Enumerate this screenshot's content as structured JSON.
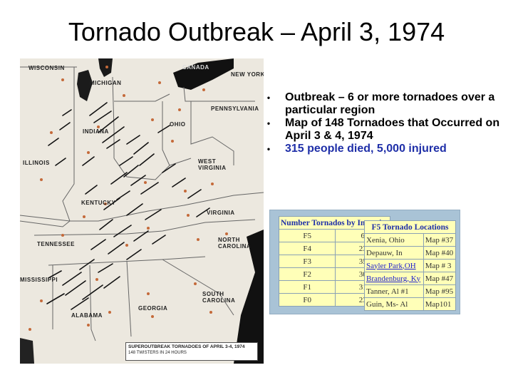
{
  "slide": {
    "title": "Tornado Outbreak – April 3, 1974",
    "bullets": [
      "Outbreak – 6 or more tornadoes over a particular region",
      "Map of 148 Tornadoes that Occurred on April 3 & 4, 1974",
      "315 people died, 5,000 injured"
    ],
    "bullet_colors": [
      "#000000",
      "#000000",
      "#1f2fa8"
    ]
  },
  "map": {
    "state_labels": [
      "WISCONSIN",
      "MICHIGAN",
      "CANADA",
      "NEW YORK",
      "PENNSYLVANIA",
      "OHIO",
      "INDIANA",
      "ILLINOIS",
      "WEST VIRGINIA",
      "KENTUCKY",
      "VIRGINIA",
      "TENNESSEE",
      "NORTH CAROLINA",
      "SOUTH CAROLINA",
      "GEORGIA",
      "ALABAMA",
      "MISSISSIPPI"
    ],
    "caption_line1": "SUPEROUTBREAK TORNADOES OF APRIL 3-4, 1974",
    "caption_line2": "148 TWISTERS IN 24 HOURS"
  },
  "intensity_table": {
    "header": "Number Tornados by Intensity",
    "rows": [
      {
        "scale": "F5",
        "count": "6"
      },
      {
        "scale": "F4",
        "count": "23"
      },
      {
        "scale": "F3",
        "count": "35"
      },
      {
        "scale": "F2",
        "count": "30"
      },
      {
        "scale": "F1",
        "count": "31"
      },
      {
        "scale": "F0",
        "count": "23"
      }
    ]
  },
  "locations_table": {
    "header": "F5 Tornado Locations",
    "rows": [
      {
        "place": "Xenia, Ohio",
        "map": "Map #37"
      },
      {
        "place": "Depauw, In",
        "map": "Map #40"
      },
      {
        "place": "Sayler Park,OH",
        "map": "Map # 3"
      },
      {
        "place": "Brandenburg, Ky",
        "map": "Map #47"
      },
      {
        "place": "Tanner, Al #1",
        "map": "Map #95"
      },
      {
        "place": "Guin, Ms- Al",
        "map": "Map101"
      }
    ]
  }
}
